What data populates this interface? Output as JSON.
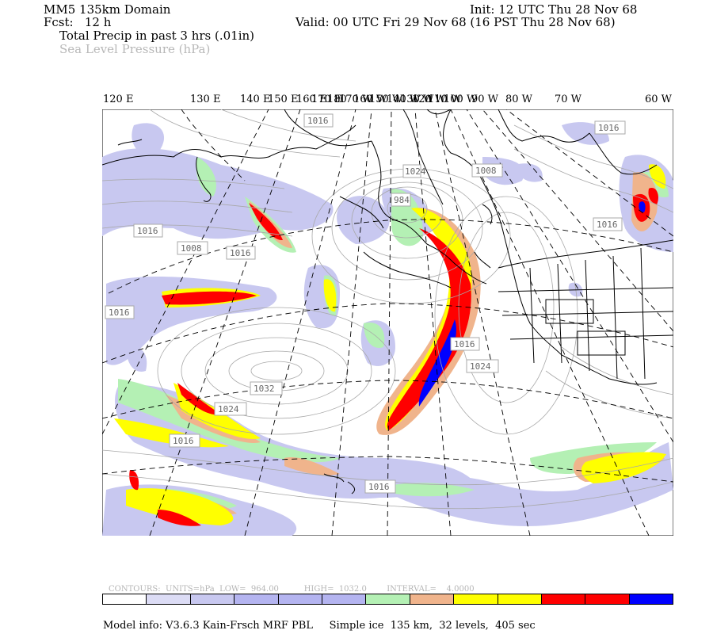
{
  "header": {
    "domain": "MM5 135km Domain",
    "fcst": "Fcst:   12 h",
    "total_precip": "Total Precip in past 3 hrs (.01in)",
    "slp": "Sea Level Pressure (hPa)",
    "init": "Init: 12 UTC Thu 28 Nov 68",
    "valid": "Valid: 00 UTC Fri 29 Nov 68 (16 PST Thu 28 Nov 68)"
  },
  "longitude_labels": [
    "120 E",
    "130 E",
    "140 E",
    "150 E",
    "160 E",
    "170 E",
    "180",
    "170 W",
    "160 W",
    "150 W",
    "140 W",
    "130 W",
    "120 W",
    "110 W",
    "100 W",
    "90 W",
    "80 W",
    "70 W",
    "60 W"
  ],
  "pressure_labels": [
    "1016",
    "1008",
    "1016",
    "984",
    "1024",
    "1016",
    "1008",
    "1016",
    "1016",
    "1032",
    "1024",
    "1016",
    "1024",
    "1016",
    "1016",
    "1016"
  ],
  "contour_info": {
    "text": "CONTOURS:  UNITS=hPa  LOW=  964.00          HIGH=  1032.0        INTERVAL=    4.0000"
  },
  "legend_colors": [
    "#ffffff",
    "#dcdcf5",
    "#c8c8f0",
    "#b4b4f0",
    "#b4b4f0",
    "#b4b4f0",
    "#b4f0b4",
    "#f0b48c",
    "#ffff00",
    "#ffff00",
    "#ff0000",
    "#ff0000",
    "#0000ff"
  ],
  "footer": {
    "model_info": "Model info: V3.6.3 Kain-Frsch MRF PBL     Simple ice  135 km,  32 levels,  405 sec"
  },
  "colors": {
    "light_purple": "#dcdcf5",
    "purple": "#b4b4f0",
    "green": "#b4f0b4",
    "tan": "#f0b48c",
    "yellow": "#ffff00",
    "red": "#ff0000",
    "blue": "#0000ff"
  }
}
